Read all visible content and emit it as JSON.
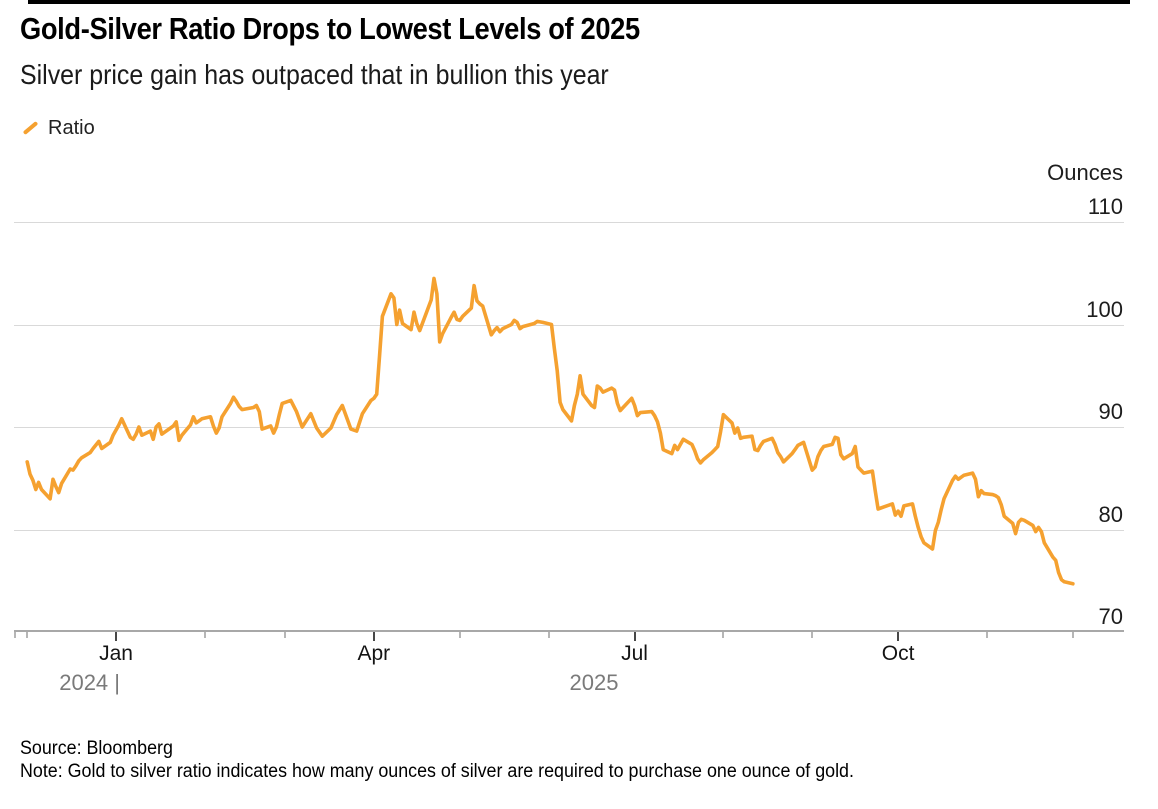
{
  "header": {
    "title": "Gold-Silver Ratio Drops to Lowest Levels of 2025",
    "subtitle": "Silver price gain has outpaced that in bullion this year"
  },
  "legend": {
    "label": "Ratio",
    "color": "#F5A130"
  },
  "footer": {
    "source": "Source: Bloomberg",
    "note": "Note: Gold to silver ratio indicates how many ounces of silver are required to purchase one ounce of gold."
  },
  "chart_data": {
    "type": "line",
    "title": "Gold-Silver Ratio Drops to Lowest Levels of 2025",
    "subtitle": "Silver price gain has outpaced that in bullion this year",
    "unit_label": "Ounces",
    "xlabel": "",
    "ylabel": "Ounces",
    "ylim": [
      70,
      110
    ],
    "y_ticks": [
      110,
      100,
      90,
      80,
      70
    ],
    "grid": "horizontal",
    "legend_position": "top-left",
    "line_color": "#F5A130",
    "x_axis": {
      "start_date": "2024-12-01",
      "end_date": "2025-12-01",
      "major_ticks": [
        {
          "date": "2025-01-01",
          "label": "Jan"
        },
        {
          "date": "2025-04-01",
          "label": "Apr"
        },
        {
          "date": "2025-07-01",
          "label": "Jul"
        },
        {
          "date": "2025-10-01",
          "label": "Oct"
        }
      ],
      "minor_ticks": [
        "2024-12-01",
        "2025-02-01",
        "2025-03-01",
        "2025-05-01",
        "2025-06-01",
        "2025-08-01",
        "2025-09-01",
        "2025-11-01",
        "2025-12-01"
      ],
      "year_labels": [
        {
          "text": "2024 |"
        },
        {
          "text": "2025"
        }
      ]
    },
    "series": [
      {
        "name": "Ratio",
        "color": "#F5A130",
        "points": [
          [
            "2024-12-01",
            86.6
          ],
          [
            "2024-12-02",
            85.4
          ],
          [
            "2024-12-03",
            84.8
          ],
          [
            "2024-12-04",
            83.9
          ],
          [
            "2024-12-05",
            84.6
          ],
          [
            "2024-12-06",
            83.9
          ],
          [
            "2024-12-09",
            83.0
          ],
          [
            "2024-12-10",
            84.9
          ],
          [
            "2024-12-11",
            84.2
          ],
          [
            "2024-12-12",
            83.6
          ],
          [
            "2024-12-13",
            84.5
          ],
          [
            "2024-12-16",
            85.9
          ],
          [
            "2024-12-17",
            85.8
          ],
          [
            "2024-12-18",
            86.2
          ],
          [
            "2024-12-19",
            86.7
          ],
          [
            "2024-12-20",
            87.0
          ],
          [
            "2024-12-23",
            87.5
          ],
          [
            "2024-12-24",
            87.9
          ],
          [
            "2024-12-26",
            88.6
          ],
          [
            "2024-12-27",
            87.9
          ],
          [
            "2024-12-30",
            88.5
          ],
          [
            "2024-12-31",
            89.2
          ],
          [
            "2025-01-02",
            90.2
          ],
          [
            "2025-01-03",
            90.8
          ],
          [
            "2025-01-06",
            89.0
          ],
          [
            "2025-01-07",
            88.8
          ],
          [
            "2025-01-08",
            89.3
          ],
          [
            "2025-01-09",
            90.0
          ],
          [
            "2025-01-10",
            89.2
          ],
          [
            "2025-01-13",
            89.6
          ],
          [
            "2025-01-14",
            88.8
          ],
          [
            "2025-01-15",
            90.0
          ],
          [
            "2025-01-16",
            90.3
          ],
          [
            "2025-01-17",
            89.3
          ],
          [
            "2025-01-21",
            90.1
          ],
          [
            "2025-01-22",
            90.5
          ],
          [
            "2025-01-23",
            88.7
          ],
          [
            "2025-01-24",
            89.2
          ],
          [
            "2025-01-27",
            90.2
          ],
          [
            "2025-01-28",
            91.0
          ],
          [
            "2025-01-29",
            90.4
          ],
          [
            "2025-01-31",
            90.8
          ],
          [
            "2025-02-03",
            91.0
          ],
          [
            "2025-02-04",
            90.1
          ],
          [
            "2025-02-05",
            89.4
          ],
          [
            "2025-02-06",
            89.9
          ],
          [
            "2025-02-07",
            91.0
          ],
          [
            "2025-02-10",
            92.3
          ],
          [
            "2025-02-11",
            92.9
          ],
          [
            "2025-02-12",
            92.5
          ],
          [
            "2025-02-13",
            92.0
          ],
          [
            "2025-02-14",
            91.7
          ],
          [
            "2025-02-18",
            91.9
          ],
          [
            "2025-02-19",
            92.1
          ],
          [
            "2025-02-20",
            91.5
          ],
          [
            "2025-02-21",
            89.8
          ],
          [
            "2025-02-24",
            90.1
          ],
          [
            "2025-02-25",
            89.4
          ],
          [
            "2025-02-26",
            90.0
          ],
          [
            "2025-02-27",
            91.2
          ],
          [
            "2025-02-28",
            92.3
          ],
          [
            "2025-03-03",
            92.6
          ],
          [
            "2025-03-05",
            91.5
          ],
          [
            "2025-03-07",
            90.0
          ],
          [
            "2025-03-10",
            91.3
          ],
          [
            "2025-03-12",
            89.9
          ],
          [
            "2025-03-14",
            89.1
          ],
          [
            "2025-03-17",
            89.9
          ],
          [
            "2025-03-19",
            91.2
          ],
          [
            "2025-03-21",
            92.1
          ],
          [
            "2025-03-24",
            89.8
          ],
          [
            "2025-03-26",
            89.6
          ],
          [
            "2025-03-28",
            91.3
          ],
          [
            "2025-03-31",
            92.6
          ],
          [
            "2025-04-01",
            92.8
          ],
          [
            "2025-04-02",
            93.2
          ],
          [
            "2025-04-03",
            97.0
          ],
          [
            "2025-04-04",
            100.8
          ],
          [
            "2025-04-07",
            103.0
          ],
          [
            "2025-04-08",
            102.6
          ],
          [
            "2025-04-09",
            100.0
          ],
          [
            "2025-04-10",
            101.4
          ],
          [
            "2025-04-11",
            100.1
          ],
          [
            "2025-04-14",
            99.5
          ],
          [
            "2025-04-15",
            101.2
          ],
          [
            "2025-04-16",
            100.1
          ],
          [
            "2025-04-17",
            99.4
          ],
          [
            "2025-04-21",
            102.4
          ],
          [
            "2025-04-22",
            104.5
          ],
          [
            "2025-04-23",
            103.0
          ],
          [
            "2025-04-24",
            98.3
          ],
          [
            "2025-04-25",
            99.1
          ],
          [
            "2025-04-28",
            100.7
          ],
          [
            "2025-04-29",
            101.2
          ],
          [
            "2025-04-30",
            100.5
          ],
          [
            "2025-05-01",
            100.4
          ],
          [
            "2025-05-02",
            100.8
          ],
          [
            "2025-05-05",
            101.6
          ],
          [
            "2025-05-06",
            103.8
          ],
          [
            "2025-05-07",
            102.3
          ],
          [
            "2025-05-08",
            102.0
          ],
          [
            "2025-05-09",
            101.8
          ],
          [
            "2025-05-12",
            99.0
          ],
          [
            "2025-05-13",
            99.4
          ],
          [
            "2025-05-14",
            99.7
          ],
          [
            "2025-05-15",
            99.3
          ],
          [
            "2025-05-16",
            99.6
          ],
          [
            "2025-05-19",
            100.0
          ],
          [
            "2025-05-20",
            100.4
          ],
          [
            "2025-05-21",
            100.2
          ],
          [
            "2025-05-22",
            99.6
          ],
          [
            "2025-05-23",
            99.8
          ],
          [
            "2025-05-27",
            100.1
          ],
          [
            "2025-05-28",
            100.3
          ],
          [
            "2025-05-30",
            100.2
          ],
          [
            "2025-06-02",
            100.0
          ],
          [
            "2025-06-03",
            97.7
          ],
          [
            "2025-06-04",
            95.5
          ],
          [
            "2025-06-05",
            92.4
          ],
          [
            "2025-06-06",
            91.7
          ],
          [
            "2025-06-09",
            90.6
          ],
          [
            "2025-06-10",
            92.1
          ],
          [
            "2025-06-11",
            93.2
          ],
          [
            "2025-06-12",
            95.0
          ],
          [
            "2025-06-13",
            93.2
          ],
          [
            "2025-06-16",
            92.1
          ],
          [
            "2025-06-17",
            91.9
          ],
          [
            "2025-06-18",
            94.0
          ],
          [
            "2025-06-19",
            93.8
          ],
          [
            "2025-06-20",
            93.4
          ],
          [
            "2025-06-23",
            93.8
          ],
          [
            "2025-06-24",
            93.6
          ],
          [
            "2025-06-25",
            92.3
          ],
          [
            "2025-06-26",
            91.6
          ],
          [
            "2025-06-27",
            91.9
          ],
          [
            "2025-06-30",
            92.8
          ],
          [
            "2025-07-01",
            92.1
          ],
          [
            "2025-07-02",
            91.1
          ],
          [
            "2025-07-03",
            91.4
          ],
          [
            "2025-07-07",
            91.5
          ],
          [
            "2025-07-08",
            91.1
          ],
          [
            "2025-07-09",
            90.5
          ],
          [
            "2025-07-10",
            89.4
          ],
          [
            "2025-07-11",
            87.8
          ],
          [
            "2025-07-14",
            87.4
          ],
          [
            "2025-07-15",
            88.2
          ],
          [
            "2025-07-16",
            87.8
          ],
          [
            "2025-07-17",
            88.3
          ],
          [
            "2025-07-18",
            88.8
          ],
          [
            "2025-07-21",
            88.3
          ],
          [
            "2025-07-22",
            87.7
          ],
          [
            "2025-07-23",
            86.9
          ],
          [
            "2025-07-24",
            86.5
          ],
          [
            "2025-07-25",
            86.8
          ],
          [
            "2025-07-28",
            87.5
          ],
          [
            "2025-07-29",
            87.8
          ],
          [
            "2025-07-30",
            88.1
          ],
          [
            "2025-07-31",
            89.5
          ],
          [
            "2025-08-01",
            91.2
          ],
          [
            "2025-08-04",
            90.4
          ],
          [
            "2025-08-05",
            89.4
          ],
          [
            "2025-08-06",
            89.9
          ],
          [
            "2025-08-07",
            88.9
          ],
          [
            "2025-08-08",
            89.0
          ],
          [
            "2025-08-11",
            89.1
          ],
          [
            "2025-08-12",
            87.8
          ],
          [
            "2025-08-13",
            87.7
          ],
          [
            "2025-08-14",
            88.2
          ],
          [
            "2025-08-15",
            88.6
          ],
          [
            "2025-08-18",
            88.9
          ],
          [
            "2025-08-19",
            88.3
          ],
          [
            "2025-08-20",
            87.5
          ],
          [
            "2025-08-21",
            87.1
          ],
          [
            "2025-08-22",
            86.6
          ],
          [
            "2025-08-25",
            87.4
          ],
          [
            "2025-08-26",
            87.8
          ],
          [
            "2025-08-27",
            88.2
          ],
          [
            "2025-08-29",
            88.5
          ],
          [
            "2025-09-01",
            85.8
          ],
          [
            "2025-09-02",
            86.1
          ],
          [
            "2025-09-03",
            87.1
          ],
          [
            "2025-09-04",
            87.7
          ],
          [
            "2025-09-05",
            88.1
          ],
          [
            "2025-09-08",
            88.3
          ],
          [
            "2025-09-09",
            89.0
          ],
          [
            "2025-09-10",
            88.9
          ],
          [
            "2025-09-11",
            87.3
          ],
          [
            "2025-09-12",
            86.9
          ],
          [
            "2025-09-15",
            87.4
          ],
          [
            "2025-09-16",
            88.1
          ],
          [
            "2025-09-17",
            86.1
          ],
          [
            "2025-09-18",
            85.8
          ],
          [
            "2025-09-19",
            85.5
          ],
          [
            "2025-09-22",
            85.7
          ],
          [
            "2025-09-23",
            83.8
          ],
          [
            "2025-09-24",
            82.0
          ],
          [
            "2025-09-26",
            82.2
          ],
          [
            "2025-09-29",
            82.5
          ],
          [
            "2025-09-30",
            81.4
          ],
          [
            "2025-10-01",
            81.8
          ],
          [
            "2025-10-02",
            81.3
          ],
          [
            "2025-10-03",
            82.3
          ],
          [
            "2025-10-06",
            82.5
          ],
          [
            "2025-10-07",
            81.3
          ],
          [
            "2025-10-08",
            80.2
          ],
          [
            "2025-10-09",
            79.3
          ],
          [
            "2025-10-10",
            78.7
          ],
          [
            "2025-10-13",
            78.1
          ],
          [
            "2025-10-14",
            79.9
          ],
          [
            "2025-10-15",
            80.7
          ],
          [
            "2025-10-16",
            81.9
          ],
          [
            "2025-10-17",
            83.0
          ],
          [
            "2025-10-20",
            84.8
          ],
          [
            "2025-10-21",
            85.2
          ],
          [
            "2025-10-22",
            84.9
          ],
          [
            "2025-10-23",
            85.1
          ],
          [
            "2025-10-24",
            85.3
          ],
          [
            "2025-10-27",
            85.5
          ],
          [
            "2025-10-28",
            84.9
          ],
          [
            "2025-10-29",
            83.2
          ],
          [
            "2025-10-30",
            83.8
          ],
          [
            "2025-10-31",
            83.5
          ],
          [
            "2025-11-03",
            83.4
          ],
          [
            "2025-11-04",
            83.3
          ],
          [
            "2025-11-05",
            83.1
          ],
          [
            "2025-11-06",
            82.4
          ],
          [
            "2025-11-07",
            81.3
          ],
          [
            "2025-11-10",
            80.6
          ],
          [
            "2025-11-11",
            79.6
          ],
          [
            "2025-11-12",
            80.7
          ],
          [
            "2025-11-13",
            81.0
          ],
          [
            "2025-11-14",
            80.9
          ],
          [
            "2025-11-17",
            80.4
          ],
          [
            "2025-11-18",
            79.8
          ],
          [
            "2025-11-19",
            80.2
          ],
          [
            "2025-11-20",
            79.8
          ],
          [
            "2025-11-21",
            78.7
          ],
          [
            "2025-11-24",
            77.3
          ],
          [
            "2025-11-25",
            77.0
          ],
          [
            "2025-11-26",
            75.8
          ],
          [
            "2025-11-27",
            75.1
          ],
          [
            "2025-11-28",
            74.9
          ],
          [
            "2025-12-01",
            74.7
          ]
        ]
      }
    ]
  }
}
